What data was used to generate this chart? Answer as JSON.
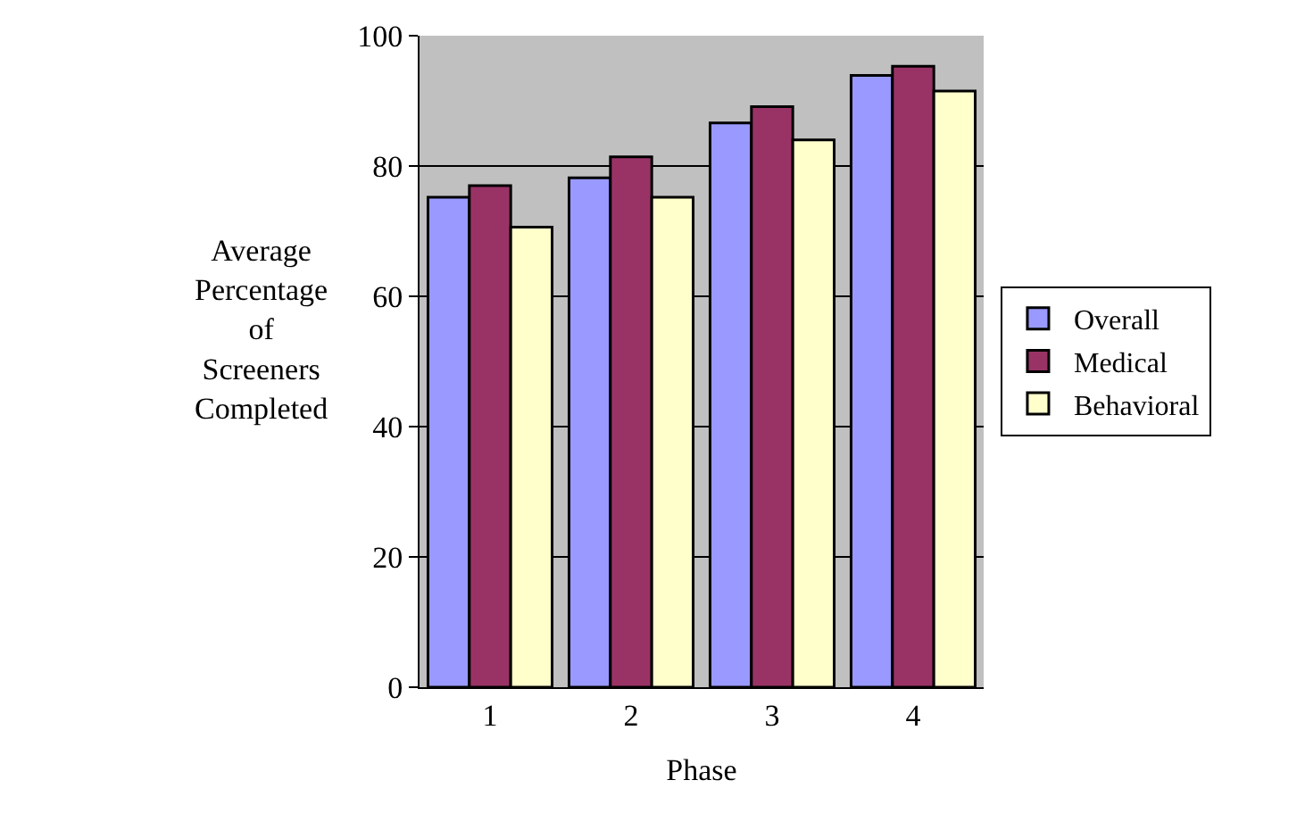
{
  "chart_data": {
    "type": "bar",
    "xlabel": "Phase",
    "ylabel": "Average\nPercentage\nof\nScreeners\nCompleted",
    "categories": [
      "1",
      "2",
      "3",
      "4"
    ],
    "series": [
      {
        "name": "Overall",
        "color": "#9999ff",
        "values": [
          75.2,
          78.2,
          86.6,
          93.9
        ]
      },
      {
        "name": "Medical",
        "color": "#993366",
        "values": [
          77,
          81.4,
          89.1,
          95.3
        ]
      },
      {
        "name": "Behavioral",
        "color": "#ffffcc",
        "values": [
          70.6,
          75.2,
          84,
          91.5
        ]
      }
    ],
    "ylim": [
      0,
      100
    ],
    "yticks": [
      0,
      20,
      40,
      60,
      80,
      100
    ],
    "grid": "y",
    "legend": "right"
  }
}
